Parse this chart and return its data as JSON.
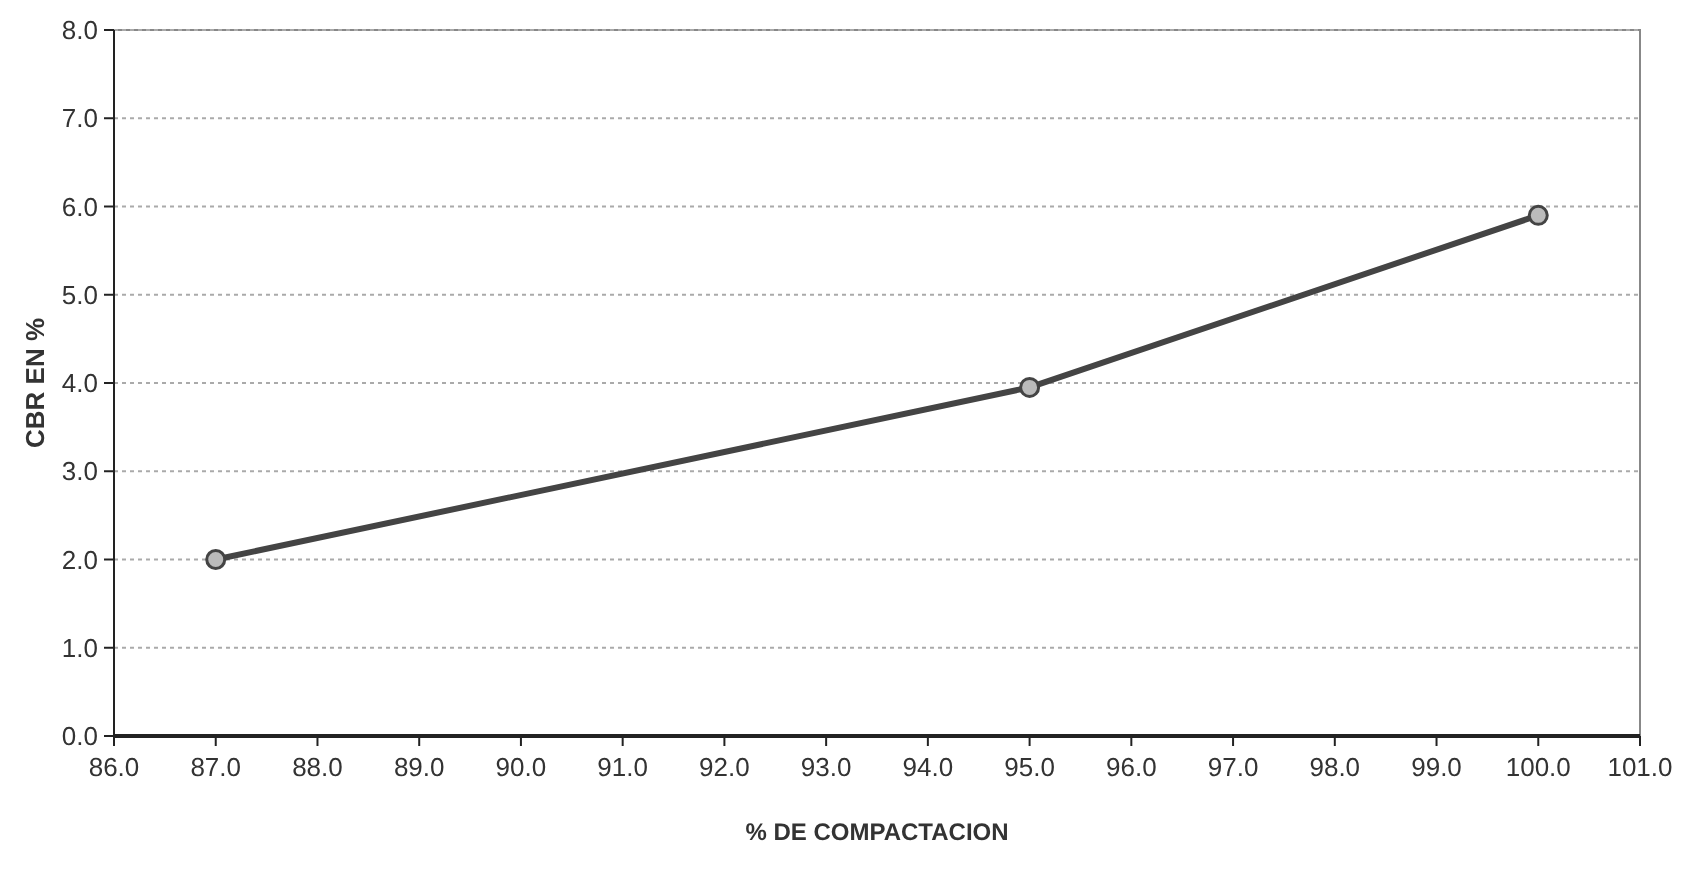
{
  "chart_data": {
    "type": "line",
    "xlabel": "% DE COMPACTACION",
    "ylabel": "CBR EN %",
    "x": [
      87,
      95,
      100
    ],
    "series": [
      {
        "color": "#444444",
        "values": [
          2.0,
          3.95,
          5.9
        ]
      }
    ],
    "xlim": [
      86,
      101
    ],
    "xticks": [
      {
        "value": 86,
        "label": "86.0"
      },
      {
        "value": 87,
        "label": "87.0"
      },
      {
        "value": 88,
        "label": "88.0"
      },
      {
        "value": 89,
        "label": "89.0"
      },
      {
        "value": 90,
        "label": "90.0"
      },
      {
        "value": 91,
        "label": "91.0"
      },
      {
        "value": 92,
        "label": "92.0"
      },
      {
        "value": 93,
        "label": "93.0"
      },
      {
        "value": 94,
        "label": "94.0"
      },
      {
        "value": 95,
        "label": "95.0"
      },
      {
        "value": 96,
        "label": "96.0"
      },
      {
        "value": 97,
        "label": "97.0"
      },
      {
        "value": 98,
        "label": "98.0"
      },
      {
        "value": 99,
        "label": "99.0"
      },
      {
        "value": 100,
        "label": "100.0"
      },
      {
        "value": 101,
        "label": "101.0"
      }
    ],
    "ylim": [
      0,
      8
    ],
    "yticks": [
      {
        "value": 0,
        "label": "0.0"
      },
      {
        "value": 1,
        "label": "1.0"
      },
      {
        "value": 2,
        "label": "2.0"
      },
      {
        "value": 3,
        "label": "3.0"
      },
      {
        "value": 4,
        "label": "4.0"
      },
      {
        "value": 5,
        "label": "5.0"
      },
      {
        "value": 6,
        "label": "6.0"
      },
      {
        "value": 7,
        "label": "7.0"
      },
      {
        "value": 8,
        "label": "8.0"
      }
    ],
    "grid": "y",
    "marker": "circle",
    "line_style": "solid"
  }
}
